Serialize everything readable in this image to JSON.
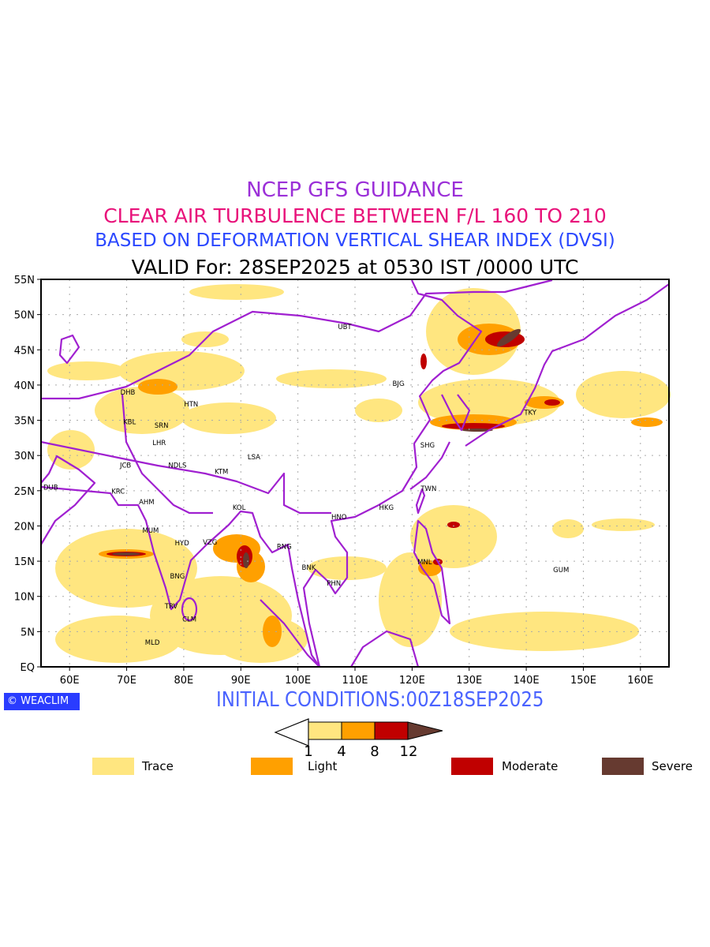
{
  "titles": {
    "line1": "NCEP GFS GUIDANCE",
    "line2": "CLEAR AIR TURBULENCE BETWEEN F/L 160 TO 210",
    "line3": "BASED ON DEFORMATION VERTICAL SHEAR INDEX (DVSI)",
    "line4": "VALID For: 28SEP2025 at 0530 IST /0000 UTC"
  },
  "map": {
    "lon_range": [
      55,
      165
    ],
    "lat_range": [
      0,
      55
    ],
    "lon_ticks": [
      "60E",
      "70E",
      "80E",
      "90E",
      "100E",
      "110E",
      "120E",
      "130E",
      "140E",
      "150E",
      "160E"
    ],
    "lat_ticks": [
      "EQ",
      "5N",
      "10N",
      "15N",
      "20N",
      "25N",
      "30N",
      "35N",
      "40N",
      "45N",
      "50N",
      "55N"
    ],
    "cities": [
      {
        "name": "UBT",
        "lon": 108.2,
        "lat": 48.3
      },
      {
        "name": "BJG",
        "lon": 117.6,
        "lat": 40.2
      },
      {
        "name": "DHB",
        "lon": 70.2,
        "lat": 39.0
      },
      {
        "name": "HTN",
        "lon": 81.3,
        "lat": 37.3
      },
      {
        "name": "KBL",
        "lon": 70.5,
        "lat": 34.8
      },
      {
        "name": "SRN",
        "lon": 76.1,
        "lat": 34.3
      },
      {
        "name": "LHR",
        "lon": 75.7,
        "lat": 31.8
      },
      {
        "name": "JCB",
        "lon": 69.8,
        "lat": 28.6
      },
      {
        "name": "NDLS",
        "lon": 78.9,
        "lat": 28.6
      },
      {
        "name": "KTM",
        "lon": 86.6,
        "lat": 27.7
      },
      {
        "name": "LSA",
        "lon": 92.3,
        "lat": 29.8
      },
      {
        "name": "DUB",
        "lon": 56.7,
        "lat": 25.5
      },
      {
        "name": "KRC",
        "lon": 68.5,
        "lat": 24.9
      },
      {
        "name": "AHM",
        "lon": 73.5,
        "lat": 23.4
      },
      {
        "name": "KOL",
        "lon": 89.7,
        "lat": 22.6
      },
      {
        "name": "MUM",
        "lon": 74.2,
        "lat": 19.4
      },
      {
        "name": "HYD",
        "lon": 79.7,
        "lat": 17.6
      },
      {
        "name": "VZG",
        "lon": 84.6,
        "lat": 17.7
      },
      {
        "name": "RNG",
        "lon": 97.6,
        "lat": 17.1
      },
      {
        "name": "BNK",
        "lon": 101.9,
        "lat": 14.1
      },
      {
        "name": "PHN",
        "lon": 106.3,
        "lat": 11.9
      },
      {
        "name": "BNG",
        "lon": 78.9,
        "lat": 12.9
      },
      {
        "name": "TRV",
        "lon": 77.8,
        "lat": 8.6
      },
      {
        "name": "CLM",
        "lon": 81.0,
        "lat": 6.8
      },
      {
        "name": "MLD",
        "lon": 74.5,
        "lat": 3.5
      },
      {
        "name": "HNO",
        "lon": 107.2,
        "lat": 21.3
      },
      {
        "name": "HKG",
        "lon": 115.5,
        "lat": 22.6
      },
      {
        "name": "TWN",
        "lon": 122.9,
        "lat": 25.3
      },
      {
        "name": "SHG",
        "lon": 122.7,
        "lat": 31.5
      },
      {
        "name": "TKY",
        "lon": 140.7,
        "lat": 36.1
      },
      {
        "name": "MNL",
        "lon": 122.2,
        "lat": 14.9
      },
      {
        "name": "GUM",
        "lon": 146.1,
        "lat": 13.8
      }
    ]
  },
  "footer": {
    "logo": "© WEACLIM",
    "initial_conditions": "INITIAL CONDITIONS:00Z18SEP2025"
  },
  "colorbar": {
    "levels": [
      "1",
      "4",
      "8",
      "12"
    ],
    "colors": [
      "#ffe680",
      "#ffa000",
      "#c00000",
      "#663a30"
    ]
  },
  "legend": [
    {
      "label": "Trace",
      "color": "#ffe680"
    },
    {
      "label": "Light",
      "color": "#ffa000"
    },
    {
      "label": "Moderate",
      "color": "#c00000"
    },
    {
      "label": "Severe",
      "color": "#663a30"
    }
  ],
  "colors": {
    "coast": "#a020d0",
    "grid": "#aaaaaa"
  }
}
